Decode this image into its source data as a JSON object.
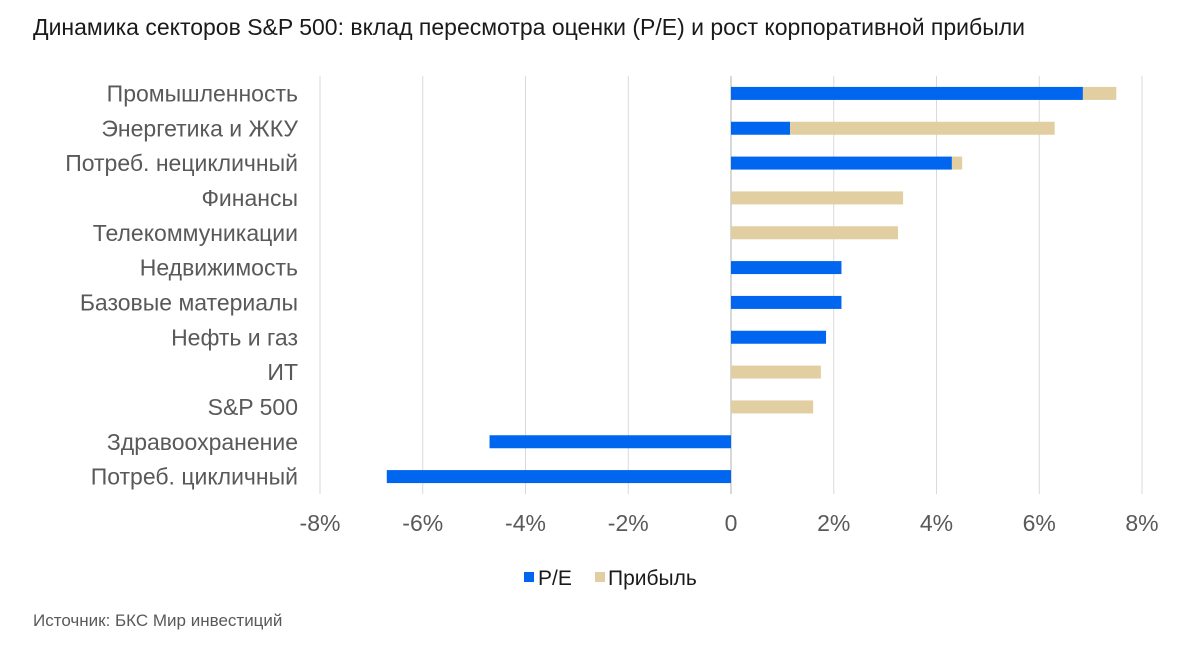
{
  "title": "Динамика секторов S&P 500: вклад пересмотра оценки (P/E) и рост корпоративной прибыли",
  "source": "Источник: БКС Мир инвестиций",
  "colors": {
    "pe": "#0066f0",
    "profit": "#e1cfa2",
    "grid": "#d9d9d9",
    "axis": "#bfbfbf"
  },
  "chart_data": {
    "type": "bar",
    "orientation": "horizontal",
    "stacked": true,
    "categories": [
      "Промышленность",
      "Энергетика и ЖКУ",
      "Потреб. нецикличный",
      "Финансы",
      "Телекоммуникации",
      "Недвижимость",
      "Базовые материалы",
      "Нефть и газ",
      "ИТ",
      "S&P 500",
      "Здравоохранение",
      "Потреб. цикличный"
    ],
    "series": [
      {
        "name": "P/E",
        "color": "#0066f0",
        "values": [
          6.85,
          1.15,
          4.3,
          0,
          0,
          2.15,
          2.15,
          1.85,
          0,
          0,
          -4.7,
          -6.7
        ]
      },
      {
        "name": "Прибыль",
        "color": "#e1cfa2",
        "values": [
          0.65,
          5.15,
          0.2,
          3.35,
          3.25,
          0,
          0,
          0,
          1.75,
          1.6,
          0,
          0
        ]
      }
    ],
    "xlim": [
      -8,
      8
    ],
    "xticks": [
      -8,
      -6,
      -4,
      -2,
      0,
      2,
      4,
      6,
      8
    ],
    "xtick_labels": [
      "-8%",
      "-6%",
      "-4%",
      "-2%",
      "0",
      "2%",
      "4%",
      "6%",
      "8%"
    ],
    "grid": true,
    "legend": {
      "position": "bottom",
      "entries": [
        "P/E",
        "Прибыль"
      ]
    }
  }
}
